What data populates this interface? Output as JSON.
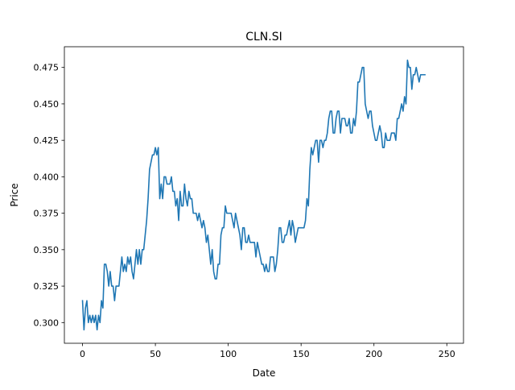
{
  "chart_data": {
    "type": "line",
    "title": "CLN.SI",
    "xlabel": "Date",
    "ylabel": "Price",
    "xlim": [
      -12.45,
      261.45
    ],
    "ylim": [
      0.2858,
      0.4892
    ],
    "grid": false,
    "legend": "none",
    "xticks": [
      0,
      50,
      100,
      150,
      200,
      250
    ],
    "yticks": [
      0.3,
      0.325,
      0.35,
      0.375,
      0.4,
      0.425,
      0.45,
      0.475
    ],
    "ytick_labels": [
      "0.300",
      "0.325",
      "0.350",
      "0.375",
      "0.400",
      "0.425",
      "0.450",
      "0.475"
    ],
    "series": [
      {
        "color": "#1f77b4",
        "x_start": 0,
        "values": [
          0.315,
          0.295,
          0.31,
          0.315,
          0.3,
          0.305,
          0.3,
          0.305,
          0.3,
          0.305,
          0.295,
          0.305,
          0.3,
          0.315,
          0.31,
          0.34,
          0.34,
          0.335,
          0.325,
          0.335,
          0.325,
          0.325,
          0.315,
          0.325,
          0.325,
          0.325,
          0.335,
          0.345,
          0.335,
          0.34,
          0.335,
          0.345,
          0.34,
          0.345,
          0.335,
          0.33,
          0.34,
          0.35,
          0.34,
          0.35,
          0.34,
          0.35,
          0.35,
          0.36,
          0.37,
          0.385,
          0.405,
          0.41,
          0.415,
          0.415,
          0.42,
          0.415,
          0.42,
          0.385,
          0.395,
          0.385,
          0.4,
          0.4,
          0.395,
          0.395,
          0.395,
          0.4,
          0.39,
          0.39,
          0.38,
          0.385,
          0.37,
          0.39,
          0.38,
          0.38,
          0.395,
          0.385,
          0.38,
          0.39,
          0.385,
          0.385,
          0.375,
          0.375,
          0.375,
          0.37,
          0.375,
          0.37,
          0.365,
          0.37,
          0.365,
          0.355,
          0.36,
          0.35,
          0.34,
          0.35,
          0.335,
          0.33,
          0.33,
          0.34,
          0.34,
          0.36,
          0.365,
          0.365,
          0.38,
          0.375,
          0.375,
          0.375,
          0.375,
          0.37,
          0.365,
          0.375,
          0.37,
          0.365,
          0.36,
          0.35,
          0.365,
          0.365,
          0.355,
          0.355,
          0.36,
          0.355,
          0.355,
          0.355,
          0.355,
          0.345,
          0.355,
          0.35,
          0.345,
          0.34,
          0.34,
          0.335,
          0.34,
          0.335,
          0.335,
          0.345,
          0.345,
          0.345,
          0.335,
          0.34,
          0.35,
          0.365,
          0.365,
          0.355,
          0.355,
          0.36,
          0.36,
          0.365,
          0.37,
          0.36,
          0.37,
          0.365,
          0.355,
          0.36,
          0.365,
          0.365,
          0.365,
          0.365,
          0.365,
          0.37,
          0.385,
          0.38,
          0.405,
          0.42,
          0.415,
          0.42,
          0.425,
          0.425,
          0.41,
          0.425,
          0.425,
          0.42,
          0.425,
          0.425,
          0.43,
          0.44,
          0.445,
          0.445,
          0.43,
          0.43,
          0.44,
          0.445,
          0.445,
          0.43,
          0.44,
          0.44,
          0.44,
          0.435,
          0.435,
          0.44,
          0.43,
          0.43,
          0.44,
          0.435,
          0.445,
          0.465,
          0.465,
          0.47,
          0.475,
          0.475,
          0.45,
          0.445,
          0.44,
          0.445,
          0.445,
          0.435,
          0.43,
          0.425,
          0.425,
          0.43,
          0.435,
          0.43,
          0.42,
          0.42,
          0.43,
          0.425,
          0.425,
          0.425,
          0.43,
          0.43,
          0.43,
          0.425,
          0.44,
          0.44,
          0.445,
          0.45,
          0.445,
          0.455,
          0.45,
          0.48,
          0.475,
          0.475,
          0.46,
          0.47,
          0.47,
          0.475,
          0.47,
          0.465,
          0.47,
          0.47,
          0.47,
          0.47
        ]
      }
    ]
  }
}
